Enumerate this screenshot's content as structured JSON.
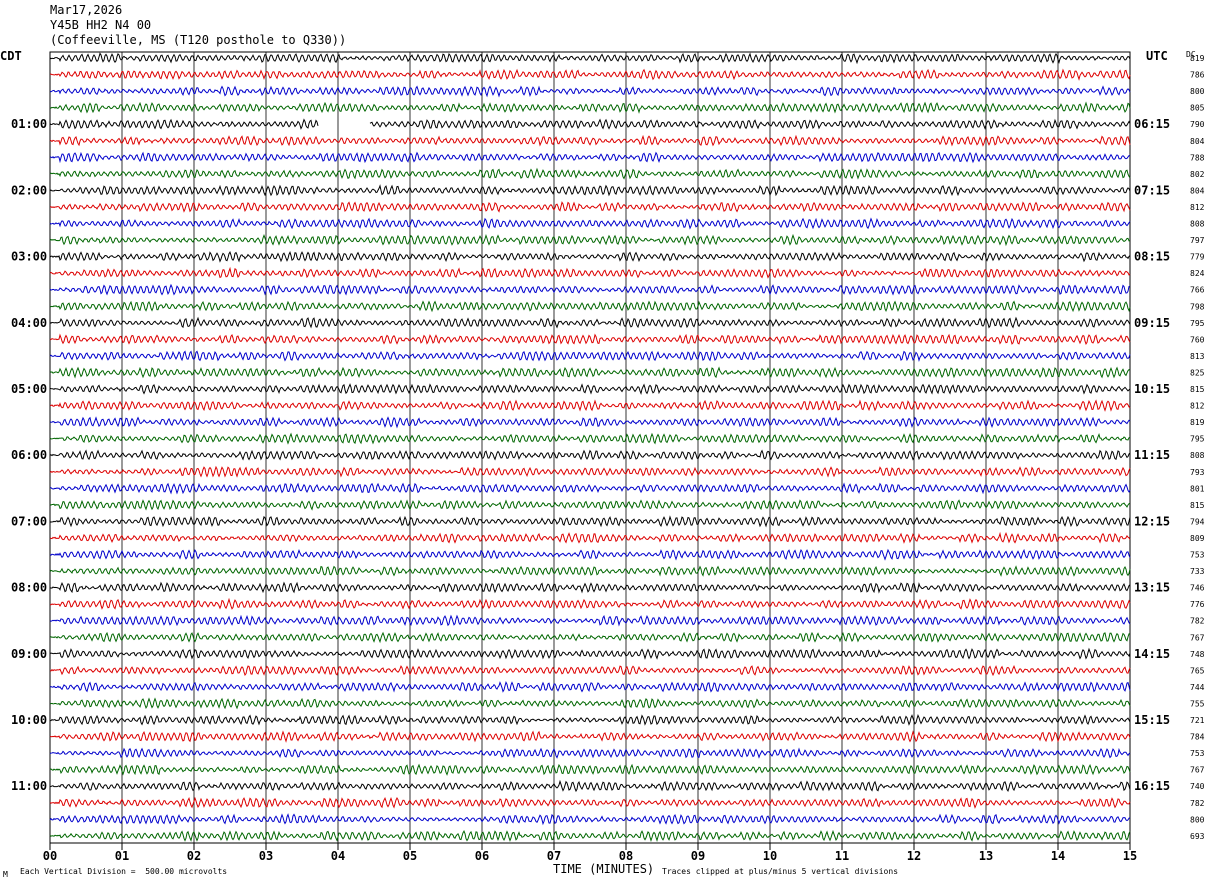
{
  "header": {
    "date": "Mar17,2026",
    "station": "Y45B HH2 N4 00",
    "location": "(Coffeeville, MS (T120 posthole to Q330))"
  },
  "left_tz": "CDT",
  "right_tz": "UTC",
  "dc_label": "DC",
  "footer": {
    "scale_text": "Each Vertical Division =  500.00 microvolts",
    "xlabel": "TIME (MINUTES)",
    "clip_text": "Traces clipped at plus/minus 5 vertical divisions",
    "corner_mark": "M"
  },
  "chart_data": {
    "type": "line",
    "subtype": "helicorder",
    "x_axis": {
      "label": "TIME (MINUTES)",
      "range": [
        0,
        15
      ],
      "ticks": [
        "00",
        "01",
        "02",
        "03",
        "04",
        "05",
        "06",
        "07",
        "08",
        "09",
        "10",
        "11",
        "12",
        "13",
        "14",
        "15"
      ]
    },
    "trace_colors": [
      "#000000",
      "#dd0000",
      "#0000cc",
      "#006600"
    ],
    "left_time_labels": [
      "01:00",
      "02:00",
      "03:00",
      "04:00",
      "05:00",
      "06:00",
      "07:00",
      "08:00",
      "09:00",
      "10:00",
      "11:00"
    ],
    "right_time_labels": [
      "06:15",
      "07:15",
      "08:15",
      "09:15",
      "10:15",
      "11:15",
      "12:15",
      "13:15",
      "14:15",
      "15:15",
      "16:15"
    ],
    "dc_values": [
      819,
      786,
      800,
      805,
      790,
      804,
      788,
      802,
      804,
      812,
      808,
      797,
      779,
      824,
      766,
      798,
      795,
      760,
      813,
      825,
      815,
      812,
      819,
      795,
      808,
      793,
      801,
      815,
      794,
      809,
      753,
      733,
      746,
      776,
      782,
      767,
      748,
      765,
      744,
      755,
      721,
      784,
      753,
      767,
      740,
      782,
      800,
      693
    ],
    "vertical_division_microvolts": 500.0,
    "clip_divisions": 5
  }
}
